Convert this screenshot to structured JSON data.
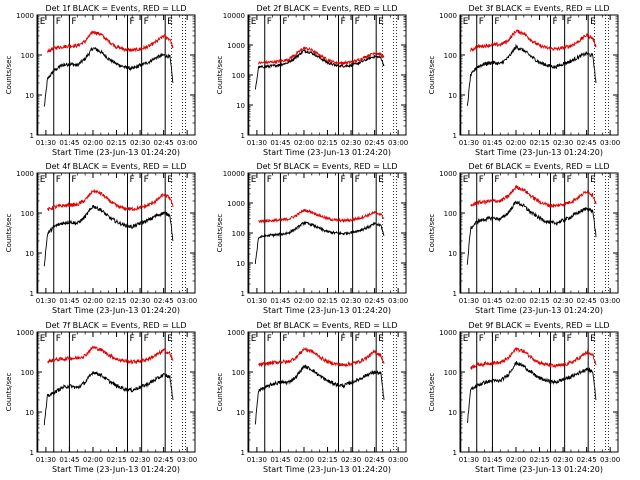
{
  "figure": {
    "panel_titles": [
      "Det 1f BLACK = Events, RED = LLD",
      "Det 2f BLACK = Events, RED = LLD",
      "Det 3f BLACK = Events, RED = LLD",
      "Det 4f BLACK = Events, RED = LLD",
      "Det 5f BLACK = Events, RED = LLD",
      "Det 6f BLACK = Events, RED = LLD",
      "Det 7f BLACK = Events, RED = LLD",
      "Det 8f BLACK = Events, RED = LLD",
      "Det 9f BLACK = Events, RED = LLD"
    ],
    "xlabel": "Start Time (23-Jun-13 01:24:20)",
    "ylabel": "Counts/sec",
    "xticks": [
      "01:30",
      "01:45",
      "02:00",
      "02:15",
      "02:30",
      "02:45",
      "03:00"
    ],
    "yticks": [
      "1",
      "10",
      "100",
      "1000"
    ],
    "colors": {
      "events": "#000000",
      "lld": "#e00000"
    },
    "markers": [
      {
        "time": "01:24:50",
        "letter": "E"
      },
      {
        "time": "01:35:00",
        "letter": "F"
      },
      {
        "time": "01:45:00",
        "letter": "F"
      },
      {
        "time": "02:22:00",
        "letter": "F"
      },
      {
        "time": "02:31:00",
        "letter": "F"
      },
      {
        "time": "02:46:00",
        "letter": "E"
      }
    ],
    "dotted_lines": [
      "02:50",
      "02:57",
      "02:59"
    ]
  },
  "chart_data": [
    {
      "type": "line",
      "title": "Det 1f BLACK = Events, RED = LLD",
      "xlabel": "Start Time (23-Jun-13 01:24:20)",
      "ylabel": "Counts/sec",
      "xlim": [
        "01:24:20",
        "03:05"
      ],
      "ylim": [
        1,
        1000
      ],
      "yscale": "log",
      "x": [
        "01:29",
        "01:31",
        "01:35",
        "01:40",
        "01:45",
        "01:50",
        "01:55",
        "02:00",
        "02:05",
        "02:10",
        "02:15",
        "02:20",
        "02:25",
        "02:30",
        "02:35",
        "02:40",
        "02:45",
        "02:49",
        "02:51"
      ],
      "series": [
        {
          "name": "Events",
          "values": [
            5,
            25,
            40,
            55,
            60,
            55,
            80,
            150,
            120,
            80,
            60,
            50,
            45,
            55,
            65,
            85,
            100,
            90,
            20
          ]
        },
        {
          "name": "LLD",
          "values": [
            null,
            120,
            150,
            160,
            170,
            170,
            220,
            380,
            330,
            220,
            160,
            140,
            130,
            140,
            160,
            210,
            300,
            250,
            150
          ]
        }
      ]
    },
    {
      "type": "line",
      "title": "Det 2f BLACK = Events, RED = LLD",
      "xlabel": "Start Time (23-Jun-13 01:24:20)",
      "ylabel": "Counts/sec",
      "xlim": [
        "01:24:20",
        "03:05"
      ],
      "ylim": [
        1,
        10000
      ],
      "yscale": "log",
      "x": [
        "01:29",
        "01:31",
        "01:35",
        "01:40",
        "01:45",
        "01:50",
        "01:55",
        "02:00",
        "02:05",
        "02:10",
        "02:15",
        "02:20",
        "02:25",
        "02:30",
        "02:35",
        "02:40",
        "02:45",
        "02:49",
        "02:51"
      ],
      "series": [
        {
          "name": "Events",
          "values": [
            30,
            180,
            190,
            200,
            220,
            260,
            400,
            650,
            550,
            380,
            260,
            210,
            200,
            210,
            250,
            330,
            420,
            380,
            200
          ]
        },
        {
          "name": "LLD",
          "values": [
            null,
            250,
            260,
            270,
            290,
            330,
            500,
            800,
            680,
            460,
            320,
            260,
            250,
            270,
            320,
            420,
            550,
            480,
            380
          ]
        }
      ]
    },
    {
      "type": "line",
      "title": "Det 3f BLACK = Events, RED = LLD",
      "xlabel": "Start Time (23-Jun-13 01:24:20)",
      "ylabel": "Counts/sec",
      "xlim": [
        "01:24:20",
        "03:05"
      ],
      "ylim": [
        1,
        1000
      ],
      "yscale": "log",
      "x": [
        "01:29",
        "01:31",
        "01:35",
        "01:40",
        "01:45",
        "01:50",
        "01:55",
        "02:00",
        "02:05",
        "02:10",
        "02:15",
        "02:20",
        "02:25",
        "02:30",
        "02:35",
        "02:40",
        "02:45",
        "02:49",
        "02:51"
      ],
      "series": [
        {
          "name": "Events",
          "values": [
            5,
            30,
            50,
            60,
            65,
            60,
            85,
            160,
            130,
            90,
            65,
            55,
            50,
            60,
            70,
            90,
            110,
            95,
            20
          ]
        },
        {
          "name": "LLD",
          "values": [
            null,
            130,
            160,
            170,
            180,
            180,
            230,
            400,
            350,
            230,
            170,
            150,
            140,
            150,
            170,
            220,
            320,
            260,
            160
          ]
        }
      ]
    },
    {
      "type": "line",
      "title": "Det 4f BLACK = Events, RED = LLD",
      "xlabel": "Start Time (23-Jun-13 01:24:20)",
      "ylabel": "Counts/sec",
      "xlim": [
        "01:24:20",
        "03:05"
      ],
      "ylim": [
        1,
        1000
      ],
      "yscale": "log",
      "x": [
        "01:29",
        "01:31",
        "01:35",
        "01:40",
        "01:45",
        "01:50",
        "01:55",
        "02:00",
        "02:05",
        "02:10",
        "02:15",
        "02:20",
        "02:25",
        "02:30",
        "02:35",
        "02:40",
        "02:45",
        "02:49",
        "02:51"
      ],
      "series": [
        {
          "name": "Events",
          "values": [
            5,
            30,
            45,
            55,
            60,
            55,
            80,
            150,
            120,
            80,
            60,
            50,
            45,
            55,
            65,
            85,
            100,
            90,
            20
          ]
        },
        {
          "name": "LLD",
          "values": [
            null,
            120,
            140,
            150,
            160,
            160,
            210,
            360,
            310,
            210,
            150,
            130,
            125,
            135,
            155,
            200,
            290,
            240,
            140
          ]
        }
      ]
    },
    {
      "type": "line",
      "title": "Det 5f BLACK = Events, RED = LLD",
      "xlabel": "Start Time (23-Jun-13 01:24:20)",
      "ylabel": "Counts/sec",
      "xlim": [
        "01:24:20",
        "03:05"
      ],
      "ylim": [
        1,
        10000
      ],
      "yscale": "log",
      "x": [
        "01:29",
        "01:31",
        "01:35",
        "01:40",
        "01:45",
        "01:50",
        "01:55",
        "02:00",
        "02:05",
        "02:10",
        "02:15",
        "02:20",
        "02:25",
        "02:30",
        "02:35",
        "02:40",
        "02:45",
        "02:49",
        "02:51"
      ],
      "series": [
        {
          "name": "Events",
          "values": [
            10,
            70,
            80,
            85,
            90,
            100,
            140,
            220,
            190,
            140,
            110,
            100,
            95,
            105,
            120,
            150,
            200,
            180,
            80
          ]
        },
        {
          "name": "LLD",
          "values": [
            null,
            250,
            250,
            260,
            270,
            290,
            380,
            580,
            500,
            380,
            300,
            270,
            260,
            270,
            310,
            380,
            480,
            420,
            300
          ]
        }
      ]
    },
    {
      "type": "line",
      "title": "Det 6f BLACK = Events, RED = LLD",
      "xlabel": "Start Time (23-Jun-13 01:24:20)",
      "ylabel": "Counts/sec",
      "xlim": [
        "01:24:20",
        "03:05"
      ],
      "ylim": [
        1,
        1000
      ],
      "yscale": "log",
      "x": [
        "01:29",
        "01:31",
        "01:35",
        "01:40",
        "01:45",
        "01:50",
        "01:55",
        "02:00",
        "02:05",
        "02:10",
        "02:15",
        "02:20",
        "02:25",
        "02:30",
        "02:35",
        "02:40",
        "02:45",
        "02:49",
        "02:51"
      ],
      "series": [
        {
          "name": "Events",
          "values": [
            5,
            40,
            60,
            70,
            75,
            70,
            100,
            190,
            150,
            100,
            75,
            60,
            55,
            65,
            80,
            105,
            130,
            110,
            25
          ]
        },
        {
          "name": "LLD",
          "values": [
            null,
            150,
            180,
            190,
            200,
            200,
            260,
            450,
            380,
            260,
            190,
            160,
            150,
            165,
            190,
            250,
            350,
            280,
            170
          ]
        }
      ]
    },
    {
      "type": "line",
      "title": "Det 7f BLACK = Events, RED = LLD",
      "xlabel": "Start Time (23-Jun-13 01:24:20)",
      "ylabel": "Counts/sec",
      "xlim": [
        "01:24:20",
        "03:05"
      ],
      "ylim": [
        1,
        1000
      ],
      "yscale": "log",
      "x": [
        "01:29",
        "01:31",
        "01:35",
        "01:40",
        "01:45",
        "01:50",
        "01:55",
        "02:00",
        "02:05",
        "02:10",
        "02:15",
        "02:20",
        "02:25",
        "02:30",
        "02:35",
        "02:40",
        "02:45",
        "02:49",
        "02:51"
      ],
      "series": [
        {
          "name": "Events",
          "values": [
            5,
            25,
            30,
            40,
            45,
            40,
            55,
            100,
            85,
            60,
            45,
            38,
            35,
            42,
            50,
            65,
            85,
            75,
            20
          ]
        },
        {
          "name": "LLD",
          "values": [
            null,
            180,
            200,
            210,
            220,
            220,
            260,
            420,
            360,
            270,
            210,
            190,
            180,
            190,
            210,
            260,
            350,
            290,
            190
          ]
        }
      ]
    },
    {
      "type": "line",
      "title": "Det 8f BLACK = Events, RED = LLD",
      "xlabel": "Start Time (23-Jun-13 01:24:20)",
      "ylabel": "Counts/sec",
      "xlim": [
        "01:24:20",
        "03:05"
      ],
      "ylim": [
        1,
        1000
      ],
      "yscale": "log",
      "x": [
        "01:29",
        "01:31",
        "01:35",
        "01:40",
        "01:45",
        "01:50",
        "01:55",
        "02:00",
        "02:05",
        "02:10",
        "02:15",
        "02:20",
        "02:25",
        "02:30",
        "02:35",
        "02:40",
        "02:45",
        "02:49",
        "02:51"
      ],
      "series": [
        {
          "name": "Events",
          "values": [
            5,
            35,
            40,
            50,
            55,
            55,
            75,
            140,
            115,
            80,
            60,
            50,
            45,
            55,
            65,
            85,
            100,
            90,
            20
          ]
        },
        {
          "name": "LLD",
          "values": [
            null,
            150,
            160,
            170,
            180,
            180,
            230,
            380,
            330,
            240,
            180,
            160,
            150,
            160,
            180,
            230,
            320,
            260,
            160
          ]
        }
      ]
    },
    {
      "type": "line",
      "title": "Det 9f BLACK = Events, RED = LLD",
      "xlabel": "Start Time (23-Jun-13 01:24:20)",
      "ylabel": "Counts/sec",
      "xlim": [
        "01:24:20",
        "03:05"
      ],
      "ylim": [
        1,
        1000
      ],
      "yscale": "log",
      "x": [
        "01:29",
        "01:31",
        "01:35",
        "01:40",
        "01:45",
        "01:50",
        "01:55",
        "02:00",
        "02:05",
        "02:10",
        "02:15",
        "02:20",
        "02:25",
        "02:30",
        "02:35",
        "02:40",
        "02:45",
        "02:49",
        "02:51"
      ],
      "series": [
        {
          "name": "Events",
          "values": [
            5,
            35,
            45,
            55,
            60,
            60,
            85,
            170,
            140,
            95,
            70,
            60,
            55,
            65,
            75,
            95,
            120,
            100,
            20
          ]
        },
        {
          "name": "LLD",
          "values": [
            null,
            130,
            150,
            160,
            170,
            170,
            220,
            380,
            330,
            230,
            170,
            150,
            140,
            150,
            170,
            220,
            310,
            260,
            150
          ]
        }
      ]
    }
  ]
}
